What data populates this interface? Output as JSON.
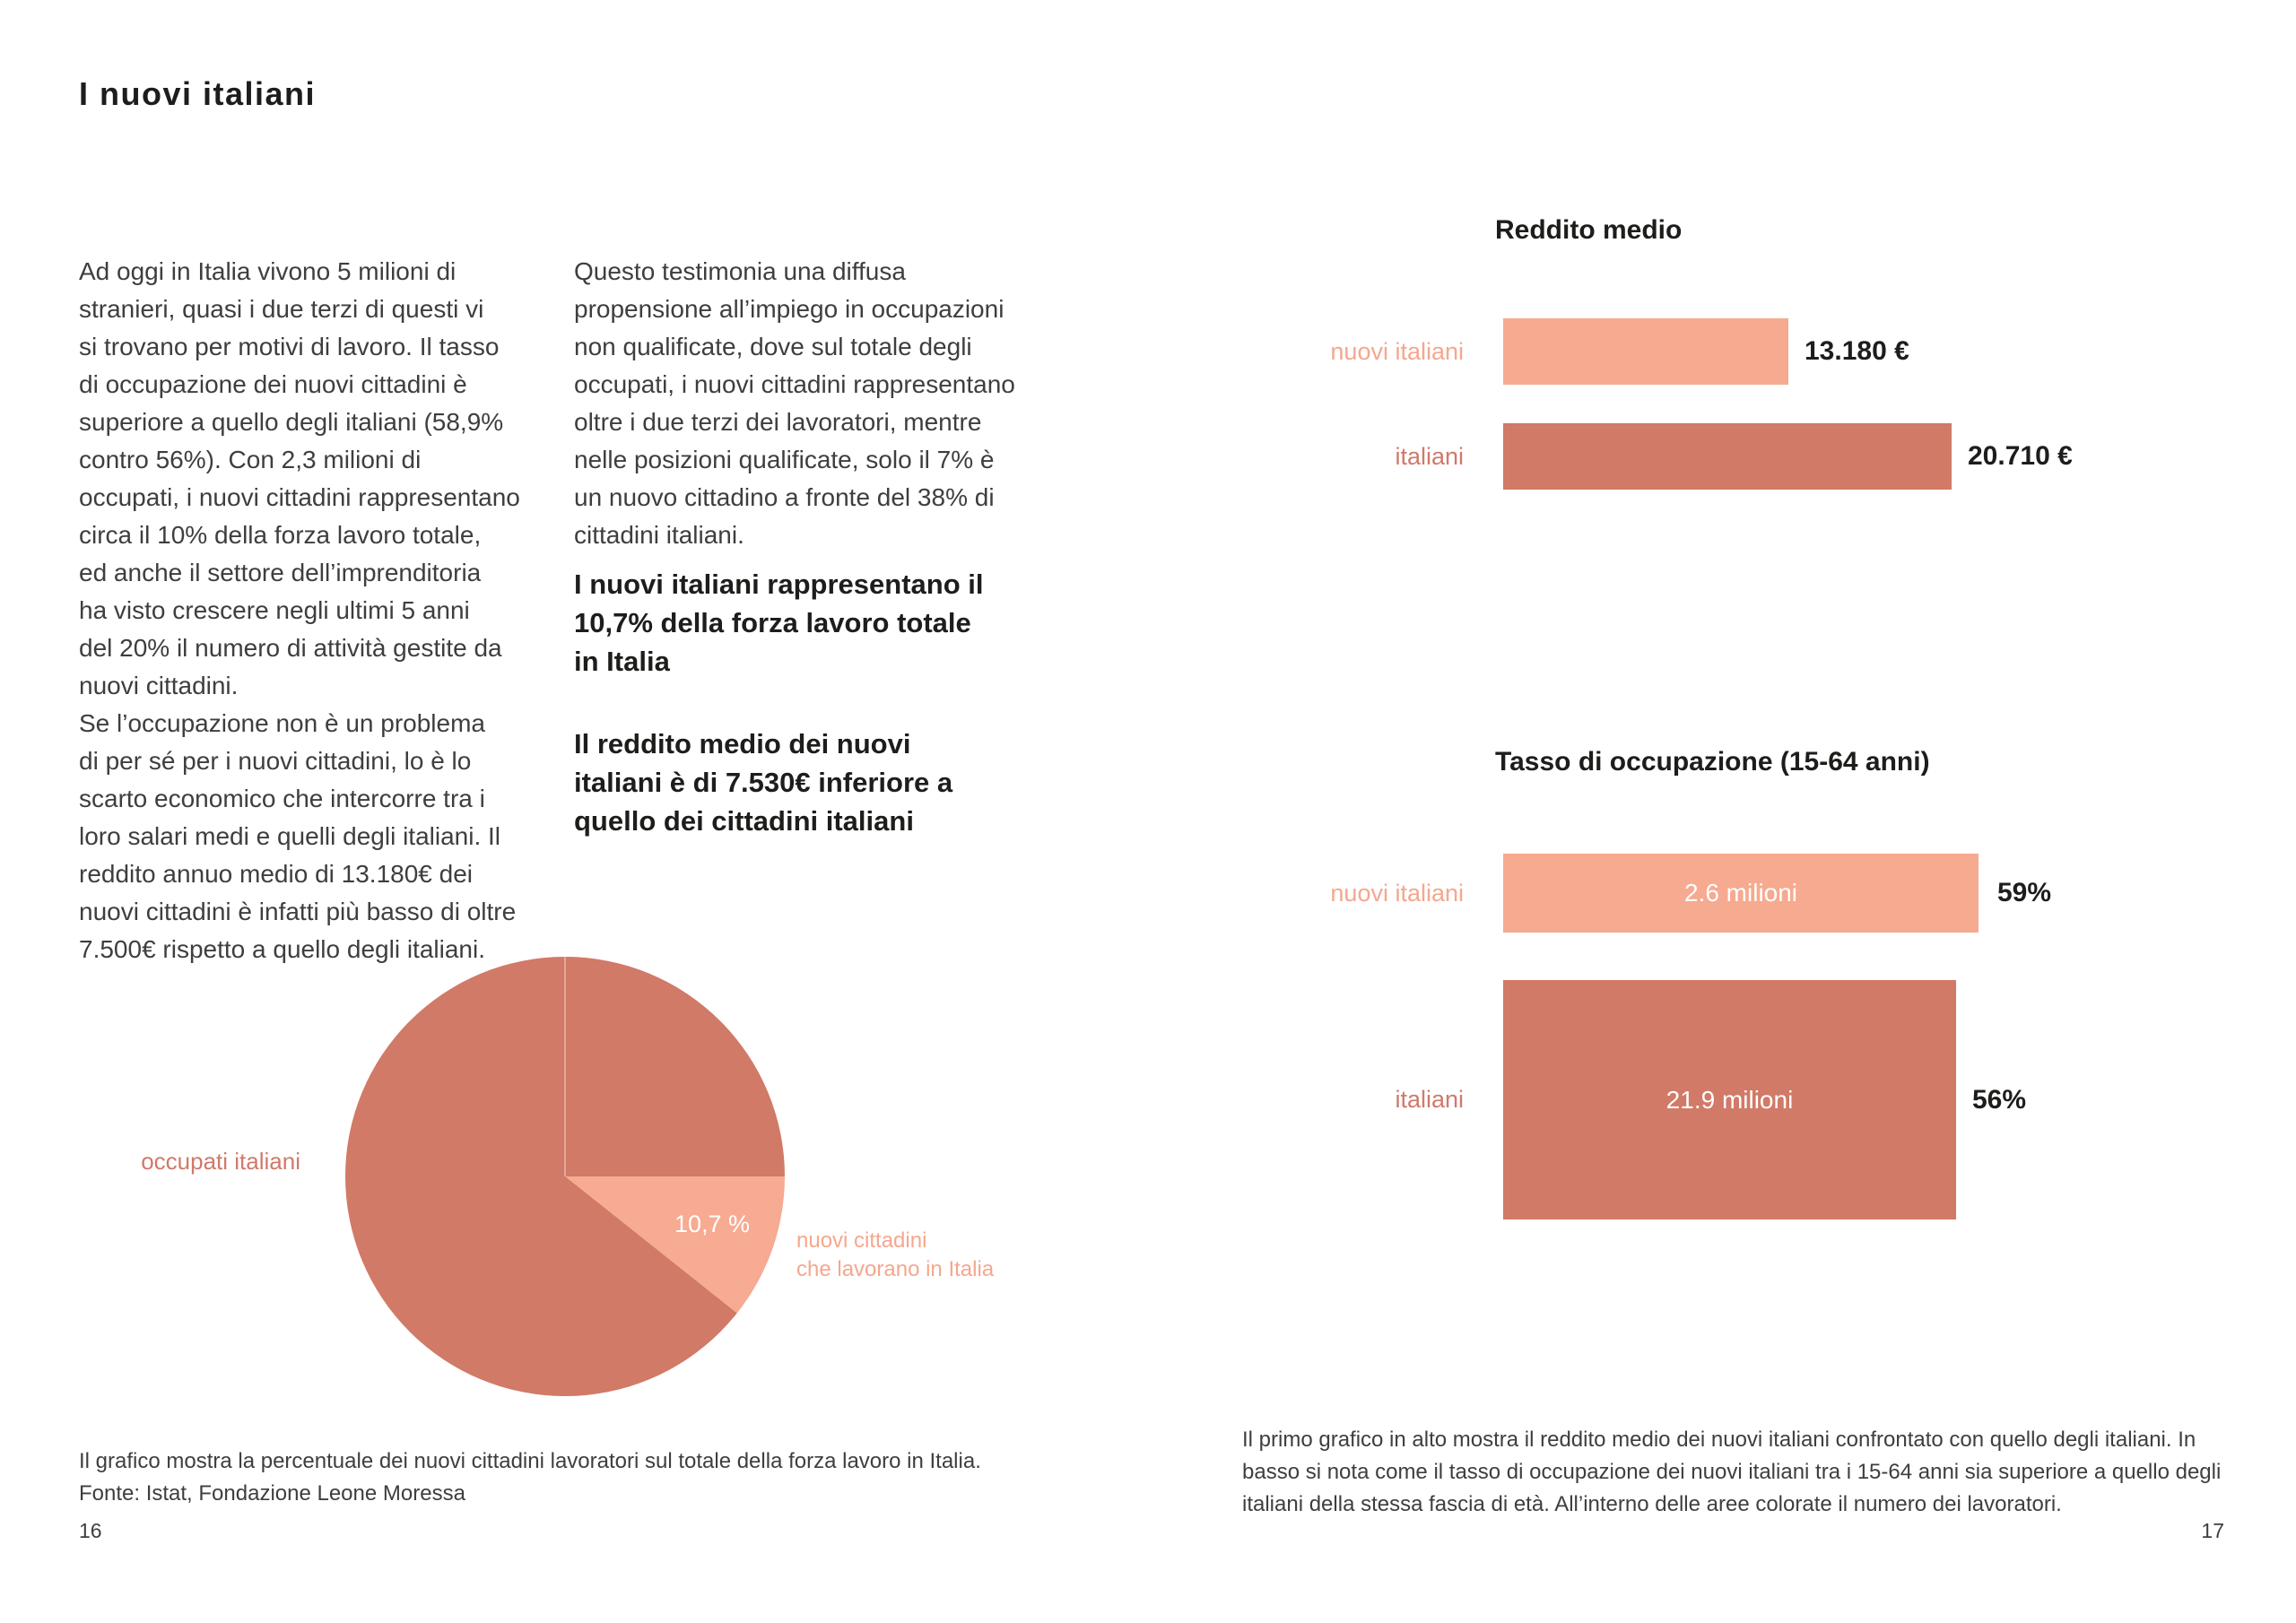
{
  "page": {
    "title": "I nuovi italiani",
    "left_page_number": "16",
    "right_page_number": "17"
  },
  "colors": {
    "accent_light": "#F6AA90",
    "accent_dark": "#D17A67",
    "label_light": "#F5A78E",
    "label_dark": "#D0796B",
    "body_text": "#3E3E3D",
    "heading_text": "#1D1D1B"
  },
  "columns": {
    "col1": "Ad oggi in Italia vivono 5 milioni di\nstranieri, quasi i due terzi di questi vi\nsi trovano per motivi di lavoro. Il tasso\ndi occupazione dei nuovi cittadini è\nsuperiore a quello degli italiani (58,9%\ncontro 56%). Con 2,3 milioni di\noccupati, i nuovi cittadini rappresentano\ncirca il 10% della forza lavoro totale,\ned anche il settore dell’imprenditoria\nha visto crescere negli ultimi 5 anni\ndel 20% il numero di attività gestite da\nnuovi cittadini.\nSe l’occupazione non è un problema\ndi per sé per i nuovi cittadini, lo è lo\nscarto economico che intercorre tra i\nloro salari medi e quelli degli italiani. Il\nreddito annuo medio di 13.180€ dei\nnuovi cittadini è infatti più basso di oltre\n7.500€ rispetto a quello degli italiani.",
    "col2": "Questo testimonia una diffusa\npropensione all’impiego in occupazioni\nnon qualificate, dove sul totale degli\noccupati, i nuovi cittadini rappresentano\noltre i due terzi dei lavoratori, mentre\nnelle posizioni qualificate, solo il 7% è\nun nuovo cittadino a fronte del 38% di\ncittadini italiani.",
    "highlight1": "I nuovi italiani rappresentano il\n10,7% della forza lavoro totale\nin Italia",
    "highlight2": "Il reddito medio dei nuovi\nitaliani è di 7.530€ inferiore a\nquello dei cittadini italiani"
  },
  "pie": {
    "label_left": "occupati italiani",
    "label_right": "nuovi cittadini\nche lavorano in Italia",
    "slice_label": "10,7 %",
    "caption": "Il grafico mostra la percentuale dei nuovi cittadini lavoratori sul totale della forza lavoro in Italia.\nFonte: Istat, Fondazione Leone Moressa"
  },
  "income_chart": {
    "title": "Reddito medio",
    "rows": [
      {
        "label": "nuovi italiani",
        "value": "13.180 €"
      },
      {
        "label": "italiani",
        "value": "20.710 €"
      }
    ]
  },
  "employment_chart": {
    "title": "Tasso di occupazione (15-64 anni)",
    "rows": [
      {
        "label": "nuovi italiani",
        "inner": "2.6 milioni",
        "pct": "59%"
      },
      {
        "label": "italiani",
        "inner": "21.9 milioni",
        "pct": "56%"
      }
    ]
  },
  "right_caption": "Il primo grafico in alto mostra il reddito medio dei nuovi italiani confrontato con quello degli italiani. In\nbasso si nota come il tasso di occupazione dei nuovi italiani tra i 15-64 anni sia superiore a quello degli\nitaliani della stessa fascia di età. All’interno delle aree colorate il numero dei lavoratori.",
  "chart_data": [
    {
      "type": "pie",
      "title": "Forza lavoro in Italia",
      "labels": [
        "occupati italiani",
        "nuovi cittadini che lavorano in Italia"
      ],
      "values": [
        89.3,
        10.7
      ],
      "unit": "%",
      "colors": [
        "#D17A67",
        "#F6AB92"
      ],
      "annotations": [
        "10,7 %"
      ],
      "source": "Istat, Fondazione Leone Moressa"
    },
    {
      "type": "bar",
      "title": "Reddito medio",
      "orientation": "horizontal",
      "categories": [
        "nuovi italiani",
        "italiani"
      ],
      "values": [
        13180,
        20710
      ],
      "unit": "€",
      "value_labels": [
        "13.180 €",
        "20.710 €"
      ],
      "colors": [
        "#F6AA90",
        "#D17A67"
      ],
      "grid": false,
      "legend": "none"
    },
    {
      "type": "bar",
      "title": "Tasso di occupazione (15-64 anni)",
      "orientation": "horizontal",
      "categories": [
        "nuovi italiani",
        "italiani"
      ],
      "values": [
        59,
        56
      ],
      "unit": "%",
      "value_labels": [
        "59%",
        "56%"
      ],
      "inner_labels": [
        "2.6 milioni",
        "21.9 milioni"
      ],
      "workers_millions": [
        2.6,
        21.9
      ],
      "colors": [
        "#F6AA90",
        "#D17A67"
      ],
      "grid": false,
      "legend": "none",
      "note": "bar area encodes number of workers"
    }
  ]
}
